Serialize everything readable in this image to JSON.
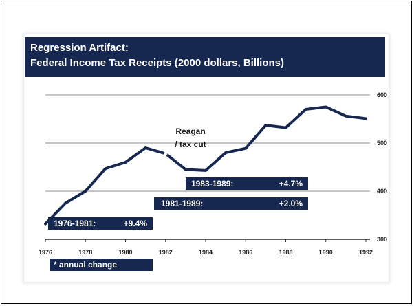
{
  "chart_data": {
    "type": "line",
    "title": "Regression Artifact:",
    "subtitle": "Federal Income Tax Receipts (2000 dollars, Billions)",
    "xlim": [
      1976,
      1992
    ],
    "ylim": [
      300,
      600
    ],
    "x_ticks": [
      "1976",
      "1978",
      "1980",
      "1982",
      "1984",
      "1986",
      "1988",
      "1990",
      "1992"
    ],
    "y_ticks": [
      "300",
      "400",
      "500",
      "600"
    ],
    "y_axis_side": "right",
    "grid": "horizontal",
    "series": [
      {
        "x": [
          1976,
          1977,
          1978,
          1979,
          1980,
          1981,
          1982,
          1983,
          1984,
          1985,
          1986,
          1987,
          1988,
          1989,
          1990,
          1991,
          1992
        ],
        "values": [
          332,
          375,
          400,
          447,
          460,
          490,
          478,
          445,
          443,
          480,
          489,
          537,
          532,
          570,
          575,
          556,
          551
        ],
        "color": "#16284f"
      }
    ],
    "annotations": [
      {
        "text_line1": "Reagan",
        "text_line2": "/ tax cut",
        "x": 1982,
        "y": 478
      }
    ],
    "change_labels": [
      {
        "period": "1983-1989:",
        "value": "+4.7%"
      },
      {
        "period": "1981-1989:",
        "value": "+2.0%"
      },
      {
        "period": "1976-1981:",
        "value": "+9.4%"
      }
    ],
    "footnote": "* annual change"
  }
}
